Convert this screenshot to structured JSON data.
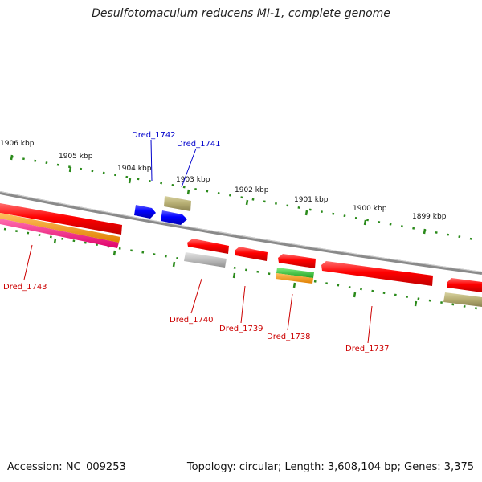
{
  "title": "Desulfotomaculum reducens MI-1, complete genome",
  "footer": {
    "accession": "Accession: NC_009253",
    "topology": "Topology: circular; Length: 3,608,104 bp; Genes: 3,375"
  },
  "colors": {
    "backbone": "#8a8a8a",
    "tick": "#2a8a1a",
    "forward_label": "#0000cc",
    "reverse_label": "#cc0000",
    "red_gene": "#ff0000",
    "blue_gene": "#0000ff",
    "tan_gene": "#b5ad72",
    "gray_gene": "#bdbdbd",
    "orange_gene": "#ff9900",
    "magenta_gene": "#ff1a8c",
    "green_gene": "#33cc33"
  },
  "kbp_labels": [
    "1906 kbp",
    "1905 kbp",
    "1904 kbp",
    "1903 kbp",
    "1902 kbp",
    "1901 kbp",
    "1900 kbp",
    "1899 kbp"
  ],
  "gene_labels": {
    "forward": [
      "Dred_1742",
      "Dred_1741"
    ],
    "reverse": [
      "Dred_1743",
      "Dred_1740",
      "Dred_1739",
      "Dred_1738",
      "Dred_1737"
    ]
  }
}
